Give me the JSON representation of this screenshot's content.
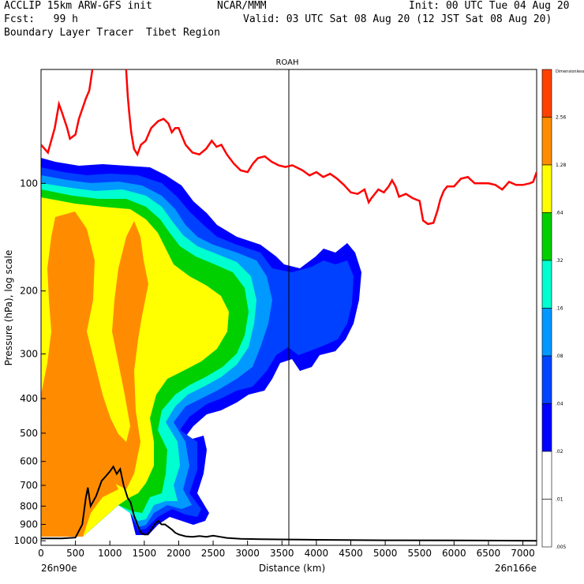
{
  "header": {
    "line1_left": "ACCLIP 15km ARW-GFS init",
    "line1_mid": "NCAR/MMM",
    "line1_right": "Init: 00 UTC Tue 04 Aug 20",
    "line2_left": "Fcst:   99 h",
    "line2_right": "Valid: 03 UTC Sat 08 Aug 20 (12 JST Sat 08 Aug 20)",
    "line3_left": "Boundary Layer Tracer  Tibet Region"
  },
  "chart_data": {
    "type": "contour cross-section",
    "title": "ROAH",
    "xlabel": "Distance (km)",
    "ylabel": "Pressure (hPa), log scale",
    "x_ticks": [
      "0",
      "500",
      "1000",
      "1500",
      "2000",
      "2500",
      "3000",
      "3500",
      "4000",
      "4500",
      "5000",
      "5500",
      "6000",
      "6500",
      "7000"
    ],
    "y_ticks": [
      "100",
      "200",
      "300",
      "400",
      "500",
      "600",
      "700",
      "800",
      "900",
      "1000"
    ],
    "xlim": [
      0,
      7200
    ],
    "ylim_hpa": [
      1030,
      48
    ],
    "x_start_label": "26n90e",
    "x_end_label": "26n166e",
    "marker_line_km": 3600,
    "colorbar": {
      "title": "Dimensionless",
      "levels": [
        "2.56",
        "1.28",
        ".64",
        ".32",
        ".16",
        ".08",
        ".04",
        ".02",
        ".01",
        ".005"
      ],
      "colors": [
        "#ff4000",
        "#ff8c00",
        "#ffff00",
        "#00d000",
        "#00ffd0",
        "#0099ff",
        "#0044ff",
        "#0000ff",
        "#ffffff",
        "#ffffff"
      ]
    },
    "tropopause_line": {
      "color": "#ff0000",
      "points": [
        [
          0,
          78
        ],
        [
          100,
          82
        ],
        [
          200,
          70
        ],
        [
          260,
          60
        ],
        [
          300,
          63
        ],
        [
          380,
          70
        ],
        [
          420,
          75
        ],
        [
          500,
          73
        ],
        [
          550,
          66
        ],
        [
          650,
          58
        ],
        [
          700,
          55
        ],
        [
          720,
          52
        ],
        [
          760,
          46
        ],
        [
          800,
          44
        ],
        [
          1200,
          44
        ],
        [
          1230,
          46
        ],
        [
          1260,
          57
        ],
        [
          1280,
          63
        ],
        [
          1310,
          72
        ],
        [
          1350,
          80
        ],
        [
          1400,
          83
        ],
        [
          1450,
          78
        ],
        [
          1520,
          76
        ],
        [
          1600,
          70
        ],
        [
          1700,
          67
        ],
        [
          1780,
          66
        ],
        [
          1850,
          68
        ],
        [
          1900,
          72
        ],
        [
          1950,
          70
        ],
        [
          2000,
          70
        ],
        [
          2050,
          74
        ],
        [
          2100,
          78
        ],
        [
          2150,
          80
        ],
        [
          2200,
          82
        ],
        [
          2300,
          83
        ],
        [
          2400,
          80
        ],
        [
          2480,
          76
        ],
        [
          2550,
          79
        ],
        [
          2620,
          78
        ],
        [
          2700,
          83
        ],
        [
          2800,
          88
        ],
        [
          2900,
          92
        ],
        [
          3000,
          93
        ],
        [
          3080,
          88
        ],
        [
          3150,
          85
        ],
        [
          3250,
          84
        ],
        [
          3350,
          87
        ],
        [
          3450,
          89
        ],
        [
          3550,
          90
        ],
        [
          3650,
          89
        ],
        [
          3800,
          92
        ],
        [
          3900,
          95
        ],
        [
          4000,
          93
        ],
        [
          4100,
          96
        ],
        [
          4200,
          94
        ],
        [
          4300,
          97
        ],
        [
          4400,
          101
        ],
        [
          4500,
          106
        ],
        [
          4600,
          107
        ],
        [
          4700,
          104
        ],
        [
          4760,
          113
        ],
        [
          4800,
          110
        ],
        [
          4900,
          104
        ],
        [
          4980,
          106
        ],
        [
          5050,
          102
        ],
        [
          5100,
          98
        ],
        [
          5150,
          102
        ],
        [
          5200,
          109
        ],
        [
          5300,
          107
        ],
        [
          5400,
          110
        ],
        [
          5500,
          112
        ],
        [
          5550,
          127
        ],
        [
          5620,
          130
        ],
        [
          5700,
          129
        ],
        [
          5760,
          119
        ],
        [
          5800,
          111
        ],
        [
          5850,
          105
        ],
        [
          5900,
          102
        ],
        [
          6000,
          102
        ],
        [
          6100,
          97
        ],
        [
          6200,
          96
        ],
        [
          6300,
          100
        ],
        [
          6400,
          100
        ],
        [
          6500,
          100
        ],
        [
          6600,
          101
        ],
        [
          6700,
          104
        ],
        [
          6800,
          99
        ],
        [
          6900,
          101
        ],
        [
          7000,
          101
        ],
        [
          7100,
          100
        ],
        [
          7150,
          99
        ],
        [
          7200,
          93
        ]
      ]
    },
    "terrain_line": {
      "color": "#000000",
      "points": [
        [
          0,
          985
        ],
        [
          300,
          985
        ],
        [
          500,
          980
        ],
        [
          600,
          900
        ],
        [
          650,
          760
        ],
        [
          680,
          710
        ],
        [
          720,
          800
        ],
        [
          800,
          750
        ],
        [
          880,
          680
        ],
        [
          940,
          660
        ],
        [
          1000,
          640
        ],
        [
          1050,
          620
        ],
        [
          1100,
          650
        ],
        [
          1150,
          630
        ],
        [
          1200,
          700
        ],
        [
          1260,
          760
        ],
        [
          1300,
          780
        ],
        [
          1350,
          850
        ],
        [
          1400,
          900
        ],
        [
          1450,
          950
        ],
        [
          1500,
          960
        ],
        [
          1550,
          960
        ],
        [
          1600,
          930
        ],
        [
          1650,
          900
        ],
        [
          1700,
          880
        ],
        [
          1750,
          900
        ],
        [
          1800,
          900
        ],
        [
          1850,
          915
        ],
        [
          1900,
          930
        ],
        [
          1950,
          950
        ],
        [
          2000,
          960
        ],
        [
          2100,
          972
        ],
        [
          2200,
          975
        ],
        [
          2300,
          970
        ],
        [
          2400,
          975
        ],
        [
          2500,
          968
        ],
        [
          2600,
          975
        ],
        [
          2700,
          982
        ],
        [
          2900,
          988
        ],
        [
          3200,
          990
        ],
        [
          3600,
          992
        ],
        [
          4000,
          994
        ],
        [
          5000,
          997
        ],
        [
          6000,
          998
        ],
        [
          7200,
          1000
        ]
      ]
    }
  }
}
